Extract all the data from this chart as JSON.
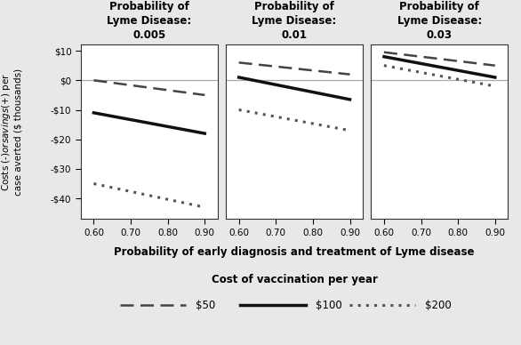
{
  "panels": [
    {
      "title": "Probability of\nLyme Disease:\n0.005",
      "lines": {
        "50": [
          0.0,
          -5.0
        ],
        "100": [
          -11.0,
          -18.0
        ],
        "200": [
          -35.0,
          -43.0
        ]
      }
    },
    {
      "title": "Probability of\nLyme Disease:\n0.01",
      "lines": {
        "50": [
          6.0,
          2.0
        ],
        "100": [
          1.0,
          -6.5
        ],
        "200": [
          -10.0,
          -17.0
        ]
      }
    },
    {
      "title": "Probability of\nLyme Disease:\n0.03",
      "lines": {
        "50": [
          9.5,
          5.0
        ],
        "100": [
          8.0,
          1.0
        ],
        "200": [
          5.0,
          -2.0
        ]
      }
    }
  ],
  "x": [
    0.6,
    0.9
  ],
  "xticks": [
    0.6,
    0.7,
    0.8,
    0.9
  ],
  "xlim": [
    0.565,
    0.935
  ],
  "ylim": [
    -47,
    12
  ],
  "yticks": [
    10,
    0,
    -10,
    -20,
    -30,
    -40
  ],
  "ytick_labels": [
    "$10",
    "$0",
    "-$10",
    "-$20",
    "-$30",
    "-$40"
  ],
  "xlabel": "Probability of early diagnosis and treatment of Lyme disease",
  "ylabel": "Costs (-$) or savings (+$) per\ncase averted ($ thousands)",
  "line_styles": {
    "50": {
      "linestyle": "--",
      "linewidth": 1.8,
      "color": "#444444",
      "dashes": [
        6,
        3
      ]
    },
    "100": {
      "linestyle": "-",
      "linewidth": 2.5,
      "color": "#111111"
    },
    "200": {
      "linestyle": ":",
      "linewidth": 2.2,
      "color": "#555555",
      "dashes": [
        1,
        2
      ]
    }
  },
  "ref_line_color": "#aaaaaa",
  "legend_title": "Cost of vaccination per year",
  "background_color": "#e8e8e8",
  "plot_bg": "#ffffff",
  "border_color": "#333333"
}
